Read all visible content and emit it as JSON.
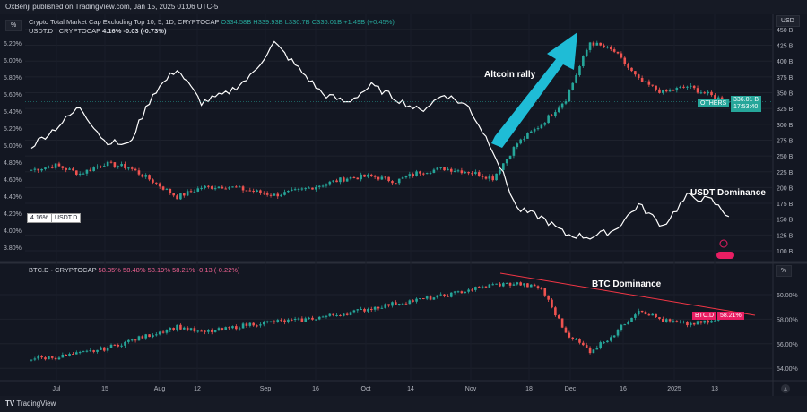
{
  "header": {
    "publish_line": "OxBenji published on TradingView.com, Jan 15, 2025 01:06 UTC-5"
  },
  "legend": {
    "unit_top": "%",
    "main_symbol": "Crypto Total Market Cap Excluding Top 10, 5, 1D, CRYPTOCAP",
    "main_ohlc": "O334.58B H339.93B L330.7B C336.01B +1.49B (+0.45%)",
    "usdt_symbol": "USDT.D · CRYPTOCAP",
    "usdt_value": "4.16%",
    "usdt_change": "-0.03 (-0.73%)",
    "btc_symbol": "BTC.D · CRYPTOCAP",
    "btc_ohlc": "58.35% 58.48% 58.19% 58.21% -0.13 (-0.22%)"
  },
  "right_axis_top": {
    "unit": "USD",
    "ticks": [
      "450 B",
      "425 B",
      "400 B",
      "375 B",
      "350 B",
      "325 B",
      "300 B",
      "275 B",
      "250 B",
      "225 B",
      "200 B",
      "175 B",
      "150 B",
      "125 B",
      "100 B"
    ]
  },
  "left_axis_top": {
    "ticks": [
      "6.20%",
      "6.00%",
      "5.80%",
      "5.60%",
      "5.40%",
      "5.20%",
      "5.00%",
      "4.80%",
      "4.60%",
      "4.40%",
      "4.20%",
      "4.00%",
      "3.80%"
    ]
  },
  "right_axis_bottom": {
    "unit": "%",
    "ticks": [
      "60.00%",
      "58.00%",
      "56.00%",
      "54.00%"
    ]
  },
  "price_tags": {
    "others_label": "OTHERS",
    "others_value": "336.01 B",
    "others_countdown": "17:53:40",
    "usdt_value": "4.16%",
    "usdt_label": "USDT.D",
    "btc_label": "BTC.D",
    "btc_value": "58.21%"
  },
  "time_axis": [
    "Jul",
    "15",
    "Aug",
    "12",
    "Sep",
    "16",
    "Oct",
    "14",
    "Nov",
    "18",
    "Dec",
    "16",
    "2025",
    "13"
  ],
  "annotations": {
    "altcoin": "Altcoin rally",
    "usdt": "USDT Dominance",
    "btc": "BTC Dominance"
  },
  "footer": {
    "brand": "TradingView"
  },
  "colors": {
    "up": "#26a69a",
    "down": "#ef5350",
    "arrow": "#1fbcd6",
    "btc_tag": "#e91e63",
    "trend": "#f23645"
  },
  "chart_data": [
    {
      "type": "candlestick",
      "name": "OTHERS",
      "unit": "B USD",
      "x": [
        "2024-06-27",
        "2024-07-04",
        "2024-07-11",
        "2024-07-18",
        "2024-07-25",
        "2024-08-01",
        "2024-08-08",
        "2024-08-15",
        "2024-08-22",
        "2024-08-29",
        "2024-09-05",
        "2024-09-12",
        "2024-09-19",
        "2024-09-26",
        "2024-10-03",
        "2024-10-10",
        "2024-10-17",
        "2024-10-24",
        "2024-10-31",
        "2024-11-07",
        "2024-11-14",
        "2024-11-21",
        "2024-11-28",
        "2024-12-05",
        "2024-12-12",
        "2024-12-19",
        "2024-12-26",
        "2025-01-02",
        "2025-01-09",
        "2025-01-14"
      ],
      "values": [
        228,
        235,
        222,
        238,
        232,
        210,
        185,
        200,
        202,
        195,
        188,
        195,
        205,
        215,
        218,
        210,
        225,
        230,
        225,
        215,
        270,
        300,
        340,
        430,
        415,
        370,
        350,
        360,
        345,
        336.01
      ],
      "ylim": [
        100,
        450
      ]
    },
    {
      "type": "line",
      "name": "USDT.D",
      "unit": "%",
      "values": [
        4.99,
        5.2,
        5.45,
        5.05,
        5.0,
        5.6,
        5.9,
        5.5,
        5.6,
        5.8,
        6.2,
        5.9,
        5.6,
        5.5,
        5.7,
        5.55,
        5.4,
        5.6,
        5.45,
        4.95,
        4.25,
        4.15,
        3.95,
        3.92,
        4.0,
        4.3,
        4.05,
        4.4,
        4.35,
        4.16
      ],
      "ylim": [
        3.7,
        6.4
      ]
    },
    {
      "type": "candlestick",
      "name": "BTC.D",
      "unit": "%",
      "values": [
        54.8,
        54.9,
        55.2,
        55.6,
        56.2,
        56.8,
        57.4,
        56.9,
        57.2,
        57.6,
        57.8,
        57.9,
        58.2,
        58.5,
        58.9,
        59.3,
        59.6,
        59.9,
        60.4,
        60.8,
        60.9,
        60.5,
        56.9,
        55.4,
        56.8,
        58.8,
        57.9,
        57.6,
        57.8,
        58.21
      ],
      "ylim": [
        53,
        61.5
      ]
    }
  ]
}
